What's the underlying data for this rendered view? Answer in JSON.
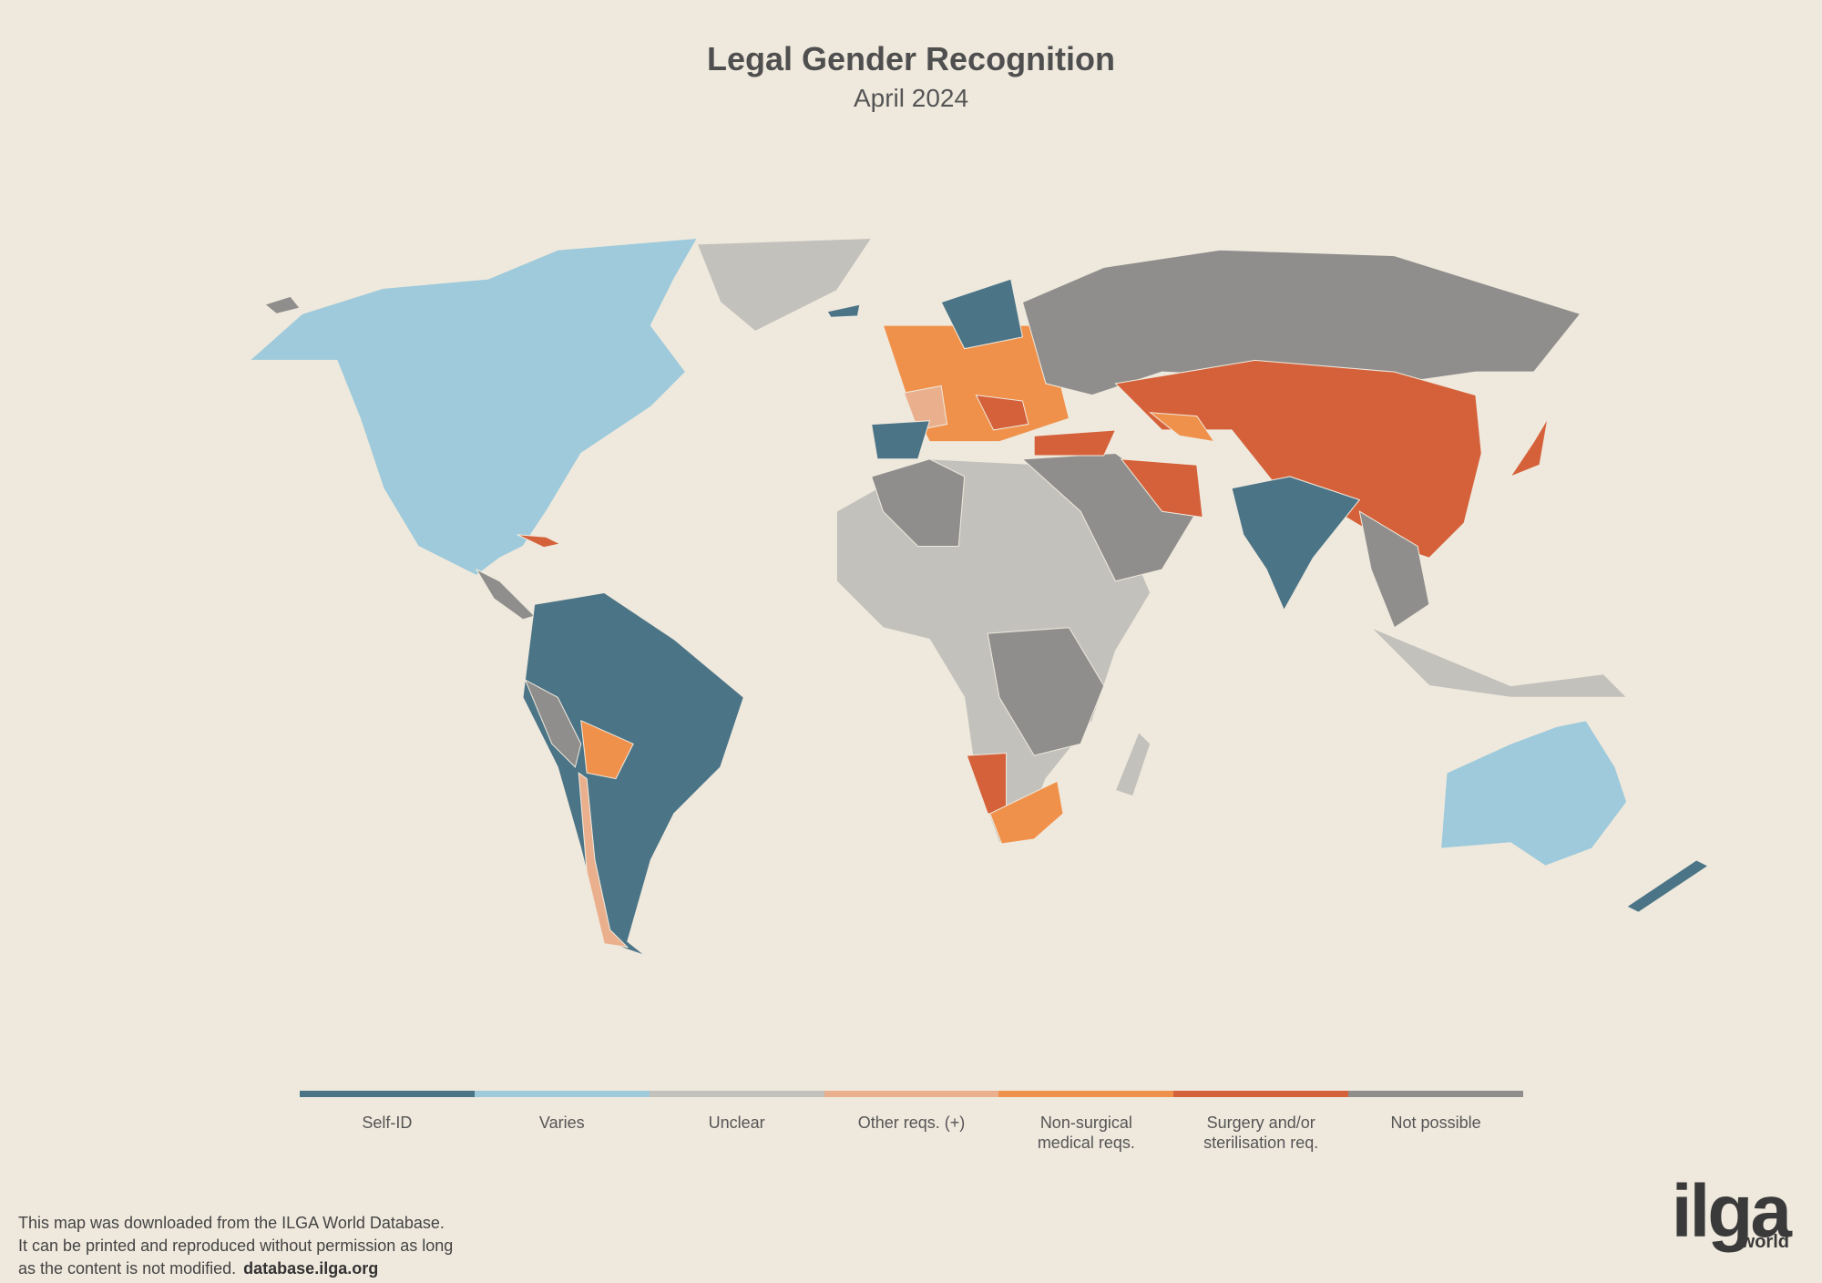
{
  "header": {
    "title": "Legal Gender Recognition",
    "subtitle": "April 2024"
  },
  "legend": {
    "items": [
      {
        "label": "Self-ID",
        "color": "#4b7486"
      },
      {
        "label": "Varies",
        "color": "#9ecadb"
      },
      {
        "label": "Unclear",
        "color": "#c3c1bc"
      },
      {
        "label": "Other reqs. (+)",
        "color": "#eab08e"
      },
      {
        "label": "Non-surgical medical reqs.",
        "color": "#f0914b"
      },
      {
        "label": "Surgery and/or sterilisation req.",
        "color": "#d5613a"
      },
      {
        "label": "Not possible",
        "color": "#8f8e8c"
      }
    ]
  },
  "footer": {
    "lines": [
      "This map was downloaded from the ILGA World Database.",
      "It can be printed and reproduced without permission as long",
      "as the content is not modified."
    ],
    "link": "database.ilga.org"
  },
  "logo": {
    "name": "ilga",
    "tagline": "world"
  }
}
